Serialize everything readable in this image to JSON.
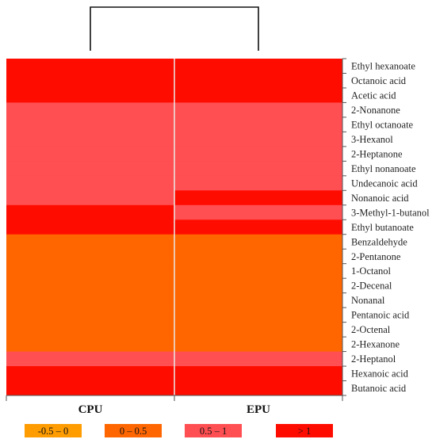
{
  "chart_data": {
    "type": "heatmap",
    "columns": [
      "CPU",
      "EPU"
    ],
    "rows": [
      "Ethyl hexanoate",
      "Octanoic acid",
      "Acetic acid",
      "2-Nonanone",
      "Ethyl octanoate",
      "3-Hexanol",
      "2-Heptanone",
      "Ethyl nonanoate",
      "Undecanoic acid",
      "Nonanoic acid",
      "3-Methyl-1-butanol",
      "Ethyl butanoate",
      "Benzaldehyde",
      "2-Pentanone",
      "1-Octanol",
      "2-Decenal",
      "Nonanal",
      "Pentanoic acid",
      "2-Octenal",
      "2-Hexanone",
      "2-Heptanol",
      "Hexanoic acid",
      "Butanoic acid"
    ],
    "category_matrix": [
      [
        3,
        3
      ],
      [
        3,
        3
      ],
      [
        3,
        3
      ],
      [
        2,
        2
      ],
      [
        2,
        2
      ],
      [
        2,
        2
      ],
      [
        2,
        2
      ],
      [
        2,
        2
      ],
      [
        2,
        2
      ],
      [
        2,
        3
      ],
      [
        3,
        2
      ],
      [
        3,
        3
      ],
      [
        1,
        1
      ],
      [
        1,
        1
      ],
      [
        1,
        1
      ],
      [
        1,
        1
      ],
      [
        1,
        1
      ],
      [
        1,
        1
      ],
      [
        1,
        1
      ],
      [
        1,
        1
      ],
      [
        2,
        2
      ],
      [
        3,
        3
      ],
      [
        3,
        3
      ]
    ],
    "legend": [
      {
        "label": "-0.5 – 0",
        "color": "#FF9C00"
      },
      {
        "label": "0 – 0.5",
        "color": "#FF6600"
      },
      {
        "label": "0.5 – 1",
        "color": "#FF4F52"
      },
      {
        "label": "> 1",
        "color": "#FF0C00"
      }
    ],
    "dendrogram": "CPU and EPU joined in one cluster"
  }
}
